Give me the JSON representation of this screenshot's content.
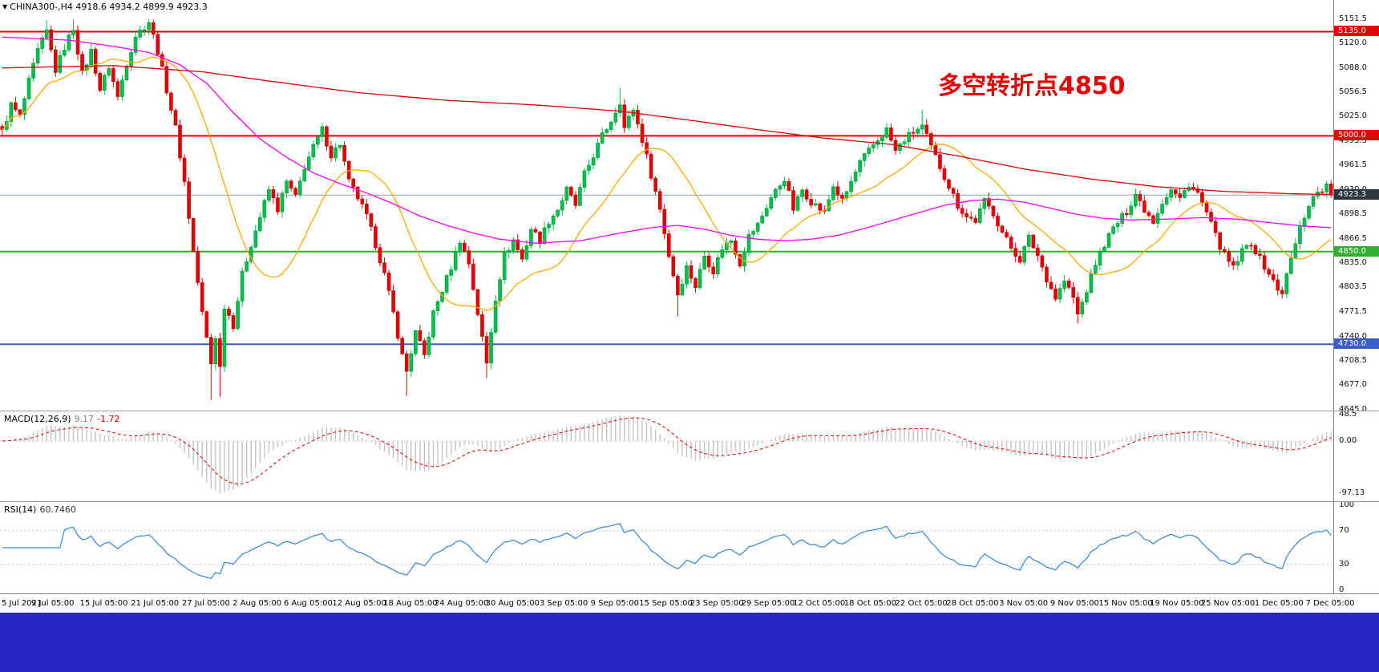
{
  "header": {
    "dropdown_icon": "▼",
    "symbol_line": "CHINA300-,H4 4918.6 4934.2 4899.9 4923.3",
    "symbol": "CHINA300-",
    "timeframe": "H4",
    "open": "4918.6",
    "high": "4934.2",
    "low": "4899.9",
    "close": "4923.3"
  },
  "annotation": {
    "text": "多空转折点4850",
    "color": "#e60000"
  },
  "macd": {
    "name": "MACD(12,26,9)",
    "value_main": "9.17",
    "value_signal": "-1.72"
  },
  "rsi": {
    "name": "RSI(14)",
    "value": "60.7460"
  },
  "price_axis": {
    "ticks": [
      5151.5,
      5120.0,
      5088.0,
      5056.5,
      5025.0,
      4993.5,
      4961.5,
      4930.0,
      4898.5,
      4866.5,
      4835.0,
      4803.5,
      4771.5,
      4740.0,
      4708.5,
      4677.0,
      4645.0
    ],
    "tags": [
      {
        "value": 5135.0,
        "label": "5135.0",
        "color": "#e60000"
      },
      {
        "value": 5000.0,
        "label": "5000.0",
        "color": "#e60000"
      },
      {
        "value": 4923.3,
        "label": "4923.3",
        "color": "#2b3542"
      },
      {
        "value": 4850.0,
        "label": "4850.0",
        "color": "#2fb02f"
      },
      {
        "value": 4730.0,
        "label": "4730.0",
        "color": "#3a5bc8"
      }
    ]
  },
  "macd_axis": {
    "ticks": [
      {
        "v": 48.5,
        "label": "48.5"
      },
      {
        "v": 0,
        "label": "0.00"
      },
      {
        "v": -97.13,
        "label": "-97.13"
      }
    ]
  },
  "rsi_axis": {
    "ticks": [
      {
        "v": 100,
        "label": "100"
      },
      {
        "v": 70,
        "label": "70"
      },
      {
        "v": 30,
        "label": "30"
      },
      {
        "v": 0,
        "label": "0"
      }
    ]
  },
  "time_axis": {
    "labels": [
      "5 Jul 2021",
      "9 Jul 05:00",
      "15 Jul 05:00",
      "21 Jul 05:00",
      "27 Jul 05:00",
      "2 Aug 05:00",
      "6 Aug 05:00",
      "12 Aug 05:00",
      "18 Aug 05:00",
      "24 Aug 05:00",
      "30 Aug 05:00",
      "3 Sep 05:00",
      "9 Sep 05:00",
      "15 Sep 05:00",
      "23 Sep 05:00",
      "29 Sep 05:00",
      "12 Oct 05:00",
      "18 Oct 05:00",
      "22 Oct 05:00",
      "28 Oct 05:00",
      "3 Nov 05:00",
      "9 Nov 05:00",
      "15 Nov 05:00",
      "19 Nov 05:00",
      "25 Nov 05:00",
      "1 Dec 05:00",
      "7 Dec 05:00"
    ]
  },
  "taskbar": {
    "color": "#2626c6"
  },
  "chart_data": {
    "type": "candlestick",
    "symbol": "CHINA300-",
    "timeframe": "H4",
    "bars": 300,
    "ylim": [
      4644,
      5176
    ],
    "noise_amp": 5,
    "wick_amp": 7,
    "close_anchors": [
      [
        0,
        5005
      ],
      [
        2,
        5040
      ],
      [
        4,
        5025
      ],
      [
        6,
        5070
      ],
      [
        8,
        5110
      ],
      [
        10,
        5135
      ],
      [
        12,
        5085
      ],
      [
        14,
        5115
      ],
      [
        16,
        5140
      ],
      [
        18,
        5080
      ],
      [
        20,
        5110
      ],
      [
        22,
        5060
      ],
      [
        24,
        5090
      ],
      [
        26,
        5050
      ],
      [
        28,
        5095
      ],
      [
        30,
        5130
      ],
      [
        33,
        5148
      ],
      [
        35,
        5110
      ],
      [
        37,
        5060
      ],
      [
        39,
        5010
      ],
      [
        41,
        4940
      ],
      [
        43,
        4850
      ],
      [
        45,
        4770
      ],
      [
        47,
        4705
      ],
      [
        48,
        4740
      ],
      [
        49,
        4700
      ],
      [
        50,
        4780
      ],
      [
        52,
        4755
      ],
      [
        54,
        4820
      ],
      [
        56,
        4860
      ],
      [
        58,
        4895
      ],
      [
        60,
        4930
      ],
      [
        62,
        4905
      ],
      [
        64,
        4940
      ],
      [
        66,
        4920
      ],
      [
        68,
        4960
      ],
      [
        70,
        4985
      ],
      [
        72,
        5008
      ],
      [
        74,
        4975
      ],
      [
        76,
        4990
      ],
      [
        78,
        4940
      ],
      [
        80,
        4920
      ],
      [
        82,
        4895
      ],
      [
        84,
        4860
      ],
      [
        86,
        4820
      ],
      [
        88,
        4770
      ],
      [
        90,
        4715
      ],
      [
        91,
        4695
      ],
      [
        93,
        4745
      ],
      [
        95,
        4715
      ],
      [
        97,
        4770
      ],
      [
        99,
        4800
      ],
      [
        101,
        4830
      ],
      [
        103,
        4865
      ],
      [
        105,
        4835
      ],
      [
        107,
        4770
      ],
      [
        109,
        4705
      ],
      [
        111,
        4790
      ],
      [
        113,
        4845
      ],
      [
        115,
        4865
      ],
      [
        117,
        4840
      ],
      [
        119,
        4880
      ],
      [
        121,
        4865
      ],
      [
        123,
        4890
      ],
      [
        125,
        4905
      ],
      [
        127,
        4930
      ],
      [
        129,
        4910
      ],
      [
        131,
        4950
      ],
      [
        133,
        4975
      ],
      [
        135,
        5000
      ],
      [
        137,
        5020
      ],
      [
        139,
        5045
      ],
      [
        140,
        5010
      ],
      [
        142,
        5035
      ],
      [
        144,
        4995
      ],
      [
        146,
        4950
      ],
      [
        148,
        4905
      ],
      [
        150,
        4845
      ],
      [
        152,
        4795
      ],
      [
        154,
        4830
      ],
      [
        156,
        4805
      ],
      [
        158,
        4845
      ],
      [
        160,
        4825
      ],
      [
        162,
        4855
      ],
      [
        164,
        4865
      ],
      [
        166,
        4835
      ],
      [
        168,
        4870
      ],
      [
        170,
        4885
      ],
      [
        173,
        4920
      ],
      [
        176,
        4945
      ],
      [
        178,
        4905
      ],
      [
        180,
        4930
      ],
      [
        182,
        4915
      ],
      [
        185,
        4900
      ],
      [
        187,
        4935
      ],
      [
        189,
        4915
      ],
      [
        191,
        4940
      ],
      [
        193,
        4965
      ],
      [
        196,
        4988
      ],
      [
        199,
        5008
      ],
      [
        201,
        4980
      ],
      [
        203,
        4995
      ],
      [
        205,
        5005
      ],
      [
        207,
        5012
      ],
      [
        209,
        4985
      ],
      [
        211,
        4960
      ],
      [
        213,
        4935
      ],
      [
        215,
        4910
      ],
      [
        217,
        4895
      ],
      [
        219,
        4890
      ],
      [
        221,
        4915
      ],
      [
        223,
        4900
      ],
      [
        225,
        4875
      ],
      [
        227,
        4855
      ],
      [
        229,
        4840
      ],
      [
        231,
        4868
      ],
      [
        233,
        4845
      ],
      [
        235,
        4815
      ],
      [
        237,
        4790
      ],
      [
        239,
        4812
      ],
      [
        241,
        4790
      ],
      [
        242,
        4768
      ],
      [
        244,
        4800
      ],
      [
        246,
        4835
      ],
      [
        248,
        4860
      ],
      [
        250,
        4880
      ],
      [
        253,
        4902
      ],
      [
        255,
        4925
      ],
      [
        257,
        4905
      ],
      [
        259,
        4890
      ],
      [
        261,
        4915
      ],
      [
        263,
        4930
      ],
      [
        265,
        4918
      ],
      [
        267,
        4938
      ],
      [
        269,
        4925
      ],
      [
        271,
        4900
      ],
      [
        273,
        4870
      ],
      [
        275,
        4845
      ],
      [
        277,
        4828
      ],
      [
        279,
        4850
      ],
      [
        281,
        4862
      ],
      [
        283,
        4840
      ],
      [
        285,
        4822
      ],
      [
        287,
        4800
      ],
      [
        288,
        4798
      ],
      [
        290,
        4840
      ],
      [
        292,
        4880
      ],
      [
        294,
        4912
      ],
      [
        296,
        4928
      ],
      [
        298,
        4934
      ],
      [
        299,
        4923.3
      ]
    ],
    "wicks": [
      {
        "bar": 10,
        "high": 5149
      },
      {
        "bar": 16,
        "high": 5151
      },
      {
        "bar": 33,
        "high": 5151
      },
      {
        "bar": 47,
        "low": 4658
      },
      {
        "bar": 49,
        "low": 4662
      },
      {
        "bar": 91,
        "low": 4663
      },
      {
        "bar": 109,
        "low": 4686
      },
      {
        "bar": 139,
        "high": 5062
      },
      {
        "bar": 152,
        "low": 4766
      },
      {
        "bar": 207,
        "high": 5033
      },
      {
        "bar": 242,
        "low": 4757
      },
      {
        "bar": 288,
        "low": 4789
      }
    ],
    "hlines": [
      {
        "price": 5135.0,
        "color": "#e60000",
        "width": 2
      },
      {
        "price": 5000.0,
        "color": "#e60000",
        "width": 2
      },
      {
        "price": 4850.0,
        "color": "#2fb02f",
        "width": 2
      },
      {
        "price": 4730.0,
        "color": "#3a5bc8",
        "width": 2
      }
    ],
    "price_line": {
      "price": 4923.3,
      "color": "#8aa2b8"
    },
    "ma": {
      "orange": {
        "type": "sma",
        "window": 20,
        "color": "#ffaa00"
      },
      "magenta": {
        "color": "#ff00ff",
        "anchors": [
          [
            0,
            5128
          ],
          [
            15,
            5124
          ],
          [
            25,
            5116
          ],
          [
            33,
            5108
          ],
          [
            40,
            5092
          ],
          [
            46,
            5068
          ],
          [
            52,
            5030
          ],
          [
            58,
            4996
          ],
          [
            64,
            4972
          ],
          [
            70,
            4952
          ],
          [
            76,
            4938
          ],
          [
            82,
            4926
          ],
          [
            88,
            4912
          ],
          [
            94,
            4896
          ],
          [
            100,
            4884
          ],
          [
            106,
            4874
          ],
          [
            112,
            4866
          ],
          [
            120,
            4861
          ],
          [
            130,
            4864
          ],
          [
            139,
            4874
          ],
          [
            146,
            4881
          ],
          [
            152,
            4884
          ],
          [
            158,
            4879
          ],
          [
            164,
            4871
          ],
          [
            170,
            4866
          ],
          [
            176,
            4864
          ],
          [
            182,
            4866
          ],
          [
            188,
            4871
          ],
          [
            194,
            4880
          ],
          [
            200,
            4890
          ],
          [
            206,
            4900
          ],
          [
            212,
            4910
          ],
          [
            218,
            4916
          ],
          [
            224,
            4918
          ],
          [
            230,
            4914
          ],
          [
            236,
            4906
          ],
          [
            242,
            4898
          ],
          [
            248,
            4893
          ],
          [
            254,
            4891
          ],
          [
            262,
            4892
          ],
          [
            270,
            4894
          ],
          [
            278,
            4892
          ],
          [
            286,
            4887
          ],
          [
            293,
            4883
          ],
          [
            299,
            4881
          ]
        ]
      },
      "red": {
        "color": "#e00000",
        "anchors": [
          [
            0,
            5088
          ],
          [
            25,
            5091
          ],
          [
            45,
            5083
          ],
          [
            60,
            5071
          ],
          [
            80,
            5056
          ],
          [
            100,
            5046
          ],
          [
            120,
            5040
          ],
          [
            139,
            5032
          ],
          [
            155,
            5020
          ],
          [
            170,
            5008
          ],
          [
            185,
            4997
          ],
          [
            200,
            4989
          ],
          [
            215,
            4974
          ],
          [
            230,
            4957
          ],
          [
            245,
            4944
          ],
          [
            260,
            4934
          ],
          [
            275,
            4928
          ],
          [
            290,
            4925
          ],
          [
            299,
            4924
          ]
        ]
      }
    },
    "macd_pane": {
      "ylim": [
        -112,
        55
      ],
      "hist_color": "#c4c4c4",
      "signal_color": "#e00000"
    },
    "rsi_pane": {
      "ylim": [
        -4,
        104
      ],
      "levels": [
        70,
        30
      ],
      "color": "#3385d6"
    },
    "colors": {
      "up": "#00c24a",
      "up_stroke": "#00943a",
      "down": "#e80000",
      "down_stroke": "#c40000"
    }
  }
}
